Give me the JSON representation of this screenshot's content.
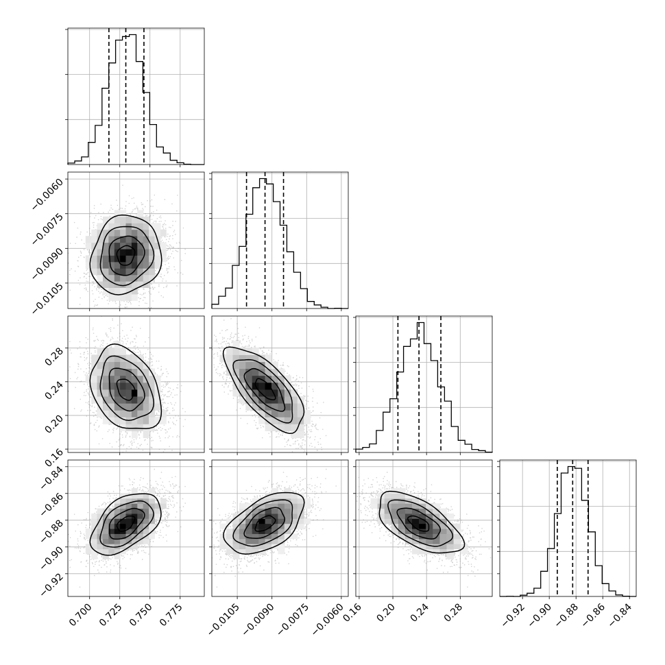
{
  "chart_data": {
    "type": "corner",
    "n_params": 4,
    "grid": true,
    "params": [
      {
        "center": 0.73,
        "sigma": 0.0145,
        "range": [
          0.682,
          0.795
        ],
        "q": [
          0.716,
          0.73,
          0.745
        ],
        "ticks": [
          0.7,
          0.725,
          0.75,
          0.775
        ],
        "tick_labels": [
          "0.700",
          "0.725",
          "0.750",
          "0.775"
        ]
      },
      {
        "center": -0.0093,
        "sigma": 0.00085,
        "range": [
          -0.0116,
          -0.0057
        ],
        "q": [
          -0.0101,
          -0.0093,
          -0.0085
        ],
        "ticks": [
          -0.0105,
          -0.009,
          -0.0075,
          -0.006
        ],
        "tick_labels": [
          "−0.0105",
          "−0.0090",
          "−0.0075",
          "−0.0060"
        ]
      },
      {
        "center": 0.231,
        "sigma": 0.025,
        "range": [
          0.156,
          0.318
        ],
        "q": [
          0.206,
          0.231,
          0.257
        ],
        "ticks": [
          0.16,
          0.2,
          0.24,
          0.28
        ],
        "tick_labels": [
          "0.16",
          "0.20",
          "0.24",
          "0.28"
        ]
      },
      {
        "center": -0.8825,
        "sigma": 0.0115,
        "range": [
          -0.937,
          -0.835
        ],
        "q": [
          -0.894,
          -0.8825,
          -0.871
        ],
        "ticks": [
          -0.92,
          -0.9,
          -0.88,
          -0.86,
          -0.84
        ],
        "tick_labels": [
          "−0.92",
          "−0.90",
          "−0.88",
          "−0.86",
          "−0.84"
        ]
      }
    ],
    "correlations": [
      [
        1,
        0.1,
        -0.3,
        0.5
      ],
      [
        0.1,
        1,
        -0.7,
        0.5
      ],
      [
        -0.3,
        -0.7,
        1,
        -0.6
      ],
      [
        0.5,
        0.5,
        -0.6,
        1
      ]
    ],
    "hist_bins": 20,
    "contour_levels_sigma": [
      0.5,
      1.0,
      1.5,
      2.0
    ],
    "n_samples": 5000,
    "colors": {
      "scatter": "#9a9a9a",
      "line": "#000000",
      "grid": "#b0b0b0"
    }
  }
}
